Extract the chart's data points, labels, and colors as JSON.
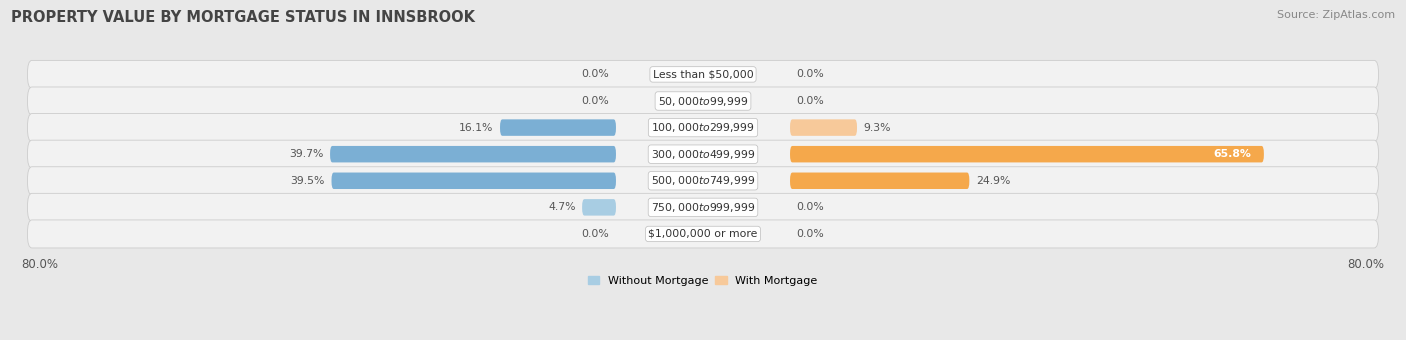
{
  "title": "PROPERTY VALUE BY MORTGAGE STATUS IN INNSBROOK",
  "source": "Source: ZipAtlas.com",
  "categories": [
    "Less than $50,000",
    "$50,000 to $99,999",
    "$100,000 to $299,999",
    "$300,000 to $499,999",
    "$500,000 to $749,999",
    "$750,000 to $999,999",
    "$1,000,000 or more"
  ],
  "without_mortgage": [
    0.0,
    0.0,
    16.1,
    39.7,
    39.5,
    4.7,
    0.0
  ],
  "with_mortgage": [
    0.0,
    0.0,
    9.3,
    65.8,
    24.9,
    0.0,
    0.0
  ],
  "color_without": "#7bafd4",
  "color_without_light": "#a8cde3",
  "color_with": "#f5a84b",
  "color_with_light": "#f7c99a",
  "axis_max": 80.0,
  "bar_height": 0.62,
  "background_color": "#e8e8e8",
  "pill_color": "#f2f2f2",
  "pill_edge_color": "#cccccc",
  "title_fontsize": 10.5,
  "source_fontsize": 8,
  "label_fontsize": 7.8,
  "value_fontsize": 7.8,
  "legend_fontsize": 8,
  "axis_label_fontsize": 8.5
}
